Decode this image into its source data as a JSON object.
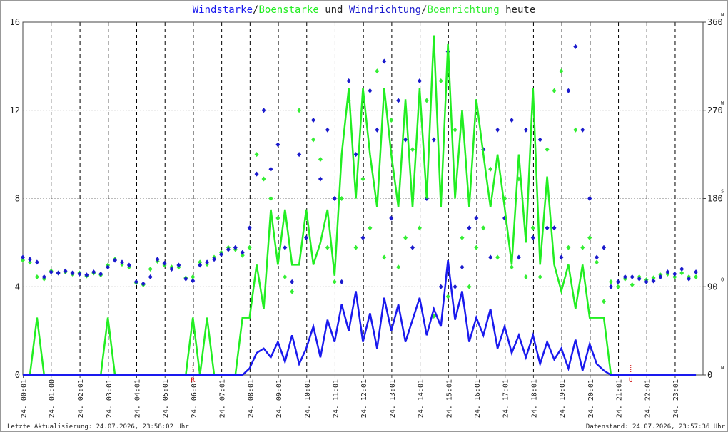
{
  "chart_data": {
    "type": "line",
    "title_connectors": [
      "/",
      " und ",
      "/",
      " heute"
    ],
    "x": [
      0,
      0.25,
      0.5,
      0.75,
      1,
      1.25,
      1.5,
      1.75,
      2,
      2.25,
      2.5,
      2.75,
      3,
      3.25,
      3.5,
      3.75,
      4,
      4.25,
      4.5,
      4.75,
      5,
      5.25,
      5.5,
      5.75,
      6,
      6.25,
      6.5,
      6.75,
      7,
      7.25,
      7.5,
      7.75,
      8,
      8.25,
      8.5,
      8.75,
      9,
      9.25,
      9.5,
      9.75,
      10,
      10.25,
      10.5,
      10.75,
      11,
      11.25,
      11.5,
      11.75,
      12,
      12.25,
      12.5,
      12.75,
      13,
      13.25,
      13.5,
      13.75,
      14,
      14.25,
      14.5,
      14.75,
      15,
      15.25,
      15.5,
      15.75,
      16,
      16.25,
      16.5,
      16.75,
      17,
      17.25,
      17.5,
      17.75,
      18,
      18.25,
      18.5,
      18.75,
      19,
      19.25,
      19.5,
      19.75,
      20,
      20.25,
      20.5,
      20.75,
      21,
      21.25,
      21.5,
      21.75,
      22,
      22.25,
      22.5,
      22.75,
      23,
      23.25,
      23.5,
      23.75
    ],
    "series": [
      {
        "name": "Windstarke",
        "color": "#1a1aee",
        "kind": "line",
        "values": [
          0,
          0,
          0,
          0,
          0,
          0,
          0,
          0,
          0,
          0,
          0,
          0,
          0,
          0,
          0,
          0,
          0,
          0,
          0,
          0,
          0,
          0,
          0,
          0,
          0,
          0,
          0,
          0,
          0,
          0,
          0,
          0,
          0.3,
          1.0,
          1.2,
          0.8,
          1.5,
          0.6,
          1.8,
          0.5,
          1.2,
          2.2,
          0.8,
          2.5,
          1.5,
          3.2,
          2.0,
          3.8,
          1.5,
          2.8,
          1.2,
          3.5,
          2.0,
          3.2,
          1.5,
          2.5,
          3.5,
          1.8,
          3.0,
          2.2,
          5.2,
          2.5,
          3.8,
          1.5,
          2.6,
          1.8,
          3.0,
          1.2,
          2.2,
          1.0,
          1.8,
          0.8,
          1.8,
          0.5,
          1.5,
          0.7,
          1.2,
          0.3,
          1.6,
          0.2,
          1.4,
          0.5,
          0.2,
          0,
          0,
          0,
          0,
          0,
          0,
          0,
          0,
          0,
          0,
          0,
          0,
          0
        ]
      },
      {
        "name": "Boenstarke",
        "color": "#22ee22",
        "kind": "line",
        "values": [
          0,
          0,
          2.6,
          0,
          0,
          0,
          0,
          0,
          0,
          0,
          0,
          0,
          2.6,
          0,
          0,
          0,
          0,
          0,
          0,
          0,
          0,
          0,
          0,
          0,
          2.6,
          0,
          2.6,
          0,
          0,
          0,
          0,
          2.6,
          2.6,
          5.0,
          3.0,
          7.5,
          5.0,
          7.5,
          5.0,
          5.0,
          7.5,
          5.0,
          6.0,
          7.5,
          4.5,
          10.0,
          13.0,
          8.0,
          13.0,
          10.0,
          7.6,
          13.0,
          10.0,
          7.6,
          12.5,
          7.6,
          13.0,
          8.0,
          15.4,
          7.6,
          15.0,
          8.0,
          12.0,
          7.6,
          12.5,
          10.0,
          7.6,
          10.0,
          7.6,
          5.0,
          10.0,
          6.0,
          13.0,
          5.0,
          9.0,
          5.0,
          3.8,
          5.0,
          3.0,
          5.0,
          2.6,
          2.6,
          2.6,
          0,
          0,
          0,
          0,
          0,
          0,
          0,
          0,
          0,
          0,
          0,
          0,
          0
        ]
      },
      {
        "name": "Windrichtung",
        "color": "#1a1acc",
        "kind": "points",
        "axis": "y2",
        "values": [
          120,
          118,
          115,
          100,
          105,
          104,
          106,
          104,
          103,
          102,
          105,
          103,
          110,
          117,
          115,
          112,
          95,
          93,
          100,
          118,
          114,
          108,
          112,
          98,
          96,
          112,
          115,
          118,
          123,
          128,
          130,
          125,
          150,
          205,
          270,
          210,
          235,
          130,
          95,
          225,
          140,
          260,
          200,
          250,
          180,
          95,
          300,
          225,
          140,
          290,
          250,
          320,
          160,
          280,
          240,
          130,
          300,
          180,
          240,
          90,
          330,
          90,
          110,
          150,
          160,
          230,
          120,
          250,
          160,
          260,
          120,
          250,
          140,
          240,
          150,
          150,
          120,
          290,
          335,
          250,
          180,
          120,
          130,
          90,
          95,
          100,
          100,
          98,
          95,
          96,
          100,
          105,
          103,
          108,
          98,
          105
        ]
      },
      {
        "name": "Boenrichtung",
        "color": "#33ee33",
        "kind": "points",
        "axis": "y2",
        "values": [
          117,
          115,
          100,
          98,
          106,
          104,
          105,
          103,
          104,
          101,
          104,
          102,
          112,
          118,
          113,
          110,
          94,
          92,
          108,
          116,
          112,
          110,
          110,
          99,
          100,
          115,
          113,
          120,
          125,
          130,
          128,
          122,
          130,
          225,
          200,
          180,
          160,
          100,
          85,
          270,
          160,
          240,
          220,
          130,
          95,
          180,
          280,
          130,
          200,
          150,
          310,
          120,
          260,
          110,
          140,
          230,
          150,
          280,
          60,
          300,
          80,
          250,
          140,
          90,
          130,
          150,
          210,
          120,
          180,
          110,
          200,
          100,
          150,
          100,
          230,
          290,
          310,
          130,
          250,
          130,
          140,
          115,
          75,
          95,
          90,
          98,
          92,
          100,
          97,
          99,
          102,
          103,
          100,
          104,
          100,
          100
        ]
      }
    ],
    "xlim": [
      0,
      24
    ],
    "xticks": [
      {
        "value": 0.017,
        "label": "24. 00:01"
      },
      {
        "value": 1,
        "label": "24. 01:00"
      },
      {
        "value": 2.017,
        "label": "24. 02:01"
      },
      {
        "value": 3.017,
        "label": "24. 03:01"
      },
      {
        "value": 4.017,
        "label": "24. 04:01"
      },
      {
        "value": 5.017,
        "label": "24. 05:01"
      },
      {
        "value": 6.017,
        "label": "24. 06:01"
      },
      {
        "value": 7.017,
        "label": "24. 07:01"
      },
      {
        "value": 8.017,
        "label": "24. 08:01"
      },
      {
        "value": 9.017,
        "label": "24. 09:01"
      },
      {
        "value": 10.017,
        "label": "24. 10:01"
      },
      {
        "value": 11.017,
        "label": "24. 11:01"
      },
      {
        "value": 12.017,
        "label": "24. 12:01"
      },
      {
        "value": 13.017,
        "label": "24. 13:01"
      },
      {
        "value": 14.017,
        "label": "24. 14:01"
      },
      {
        "value": 15.017,
        "label": "24. 15:01"
      },
      {
        "value": 16.017,
        "label": "24. 16:01"
      },
      {
        "value": 17.017,
        "label": "24. 17:01"
      },
      {
        "value": 18.017,
        "label": "24. 18:01"
      },
      {
        "value": 19.017,
        "label": "24. 19:01"
      },
      {
        "value": 20.017,
        "label": "24. 20:01"
      },
      {
        "value": 21.017,
        "label": "24. 21:01"
      },
      {
        "value": 22.017,
        "label": "24. 22:01"
      },
      {
        "value": 23.017,
        "label": "24. 23:01"
      }
    ],
    "ylim": [
      0,
      16
    ],
    "yticks": [
      0,
      4,
      8,
      12,
      16
    ],
    "y2lim": [
      0,
      360
    ],
    "y2ticks": [
      0,
      90,
      180,
      270,
      360
    ],
    "y2tick_letters": [
      "N",
      "O",
      "S",
      "W",
      "N"
    ],
    "grid": true,
    "annotations": [
      {
        "text": "R",
        "x": 6.0,
        "color": "#cc0000"
      },
      {
        "text": "U",
        "x": 21.45,
        "color": "#cc0000"
      }
    ],
    "footer_left": "Letzte Aktualisierung: 24.07.2026, 23:58:02 Uhr",
    "footer_right": "Datenstand: 24.07.2026, 23:57:36 Uhr"
  }
}
